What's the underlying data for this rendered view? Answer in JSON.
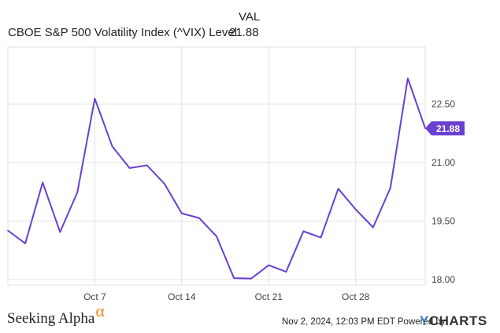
{
  "legend": {
    "header": "VAL",
    "series_label": "CBOE S&P 500 Volatility Index (^VIX) Level",
    "series_value": "21.88"
  },
  "chart_data": {
    "type": "line",
    "series": [
      {
        "name": "CBOE S&P 500 Volatility Index (^VIX) Level",
        "color": "#6a3fd2",
        "x": [
          "2024-09-30",
          "2024-10-01",
          "2024-10-02",
          "2024-10-03",
          "2024-10-04",
          "2024-10-07",
          "2024-10-08",
          "2024-10-09",
          "2024-10-10",
          "2024-10-11",
          "2024-10-14",
          "2024-10-15",
          "2024-10-16",
          "2024-10-17",
          "2024-10-18",
          "2024-10-21",
          "2024-10-22",
          "2024-10-23",
          "2024-10-24",
          "2024-10-25",
          "2024-10-28",
          "2024-10-29",
          "2024-10-30",
          "2024-10-31",
          "2024-11-01"
        ],
        "values": [
          19.26,
          18.93,
          20.49,
          19.22,
          20.24,
          22.64,
          21.42,
          20.86,
          20.93,
          20.46,
          19.7,
          19.58,
          19.11,
          18.04,
          18.03,
          18.37,
          18.2,
          19.24,
          19.08,
          20.33,
          19.8,
          19.34,
          20.35,
          23.16,
          21.88
        ]
      }
    ],
    "x_ticks": [
      "Oct 7",
      "Oct 14",
      "Oct 21",
      "Oct 28"
    ],
    "x_tick_dates": [
      "2024-10-07",
      "2024-10-14",
      "2024-10-21",
      "2024-10-28"
    ],
    "y_ticks": [
      "18.00",
      "19.50",
      "21.00",
      "22.50"
    ],
    "y_tick_values": [
      18.0,
      19.5,
      21.0,
      22.5
    ],
    "ylim": [
      17.86,
      23.96
    ],
    "last_value_label": "21.88",
    "grid": true,
    "y_axis_position": "right",
    "legend_position": "top-left"
  },
  "footer": {
    "logo_text": "Seeking Alpha",
    "logo_symbol": "α",
    "timestamp": "Nov 2, 2024, 12:03 PM EDT",
    "powered_by": "Powered by",
    "brand_y": "Y",
    "brand_rest": "CHARTS"
  }
}
